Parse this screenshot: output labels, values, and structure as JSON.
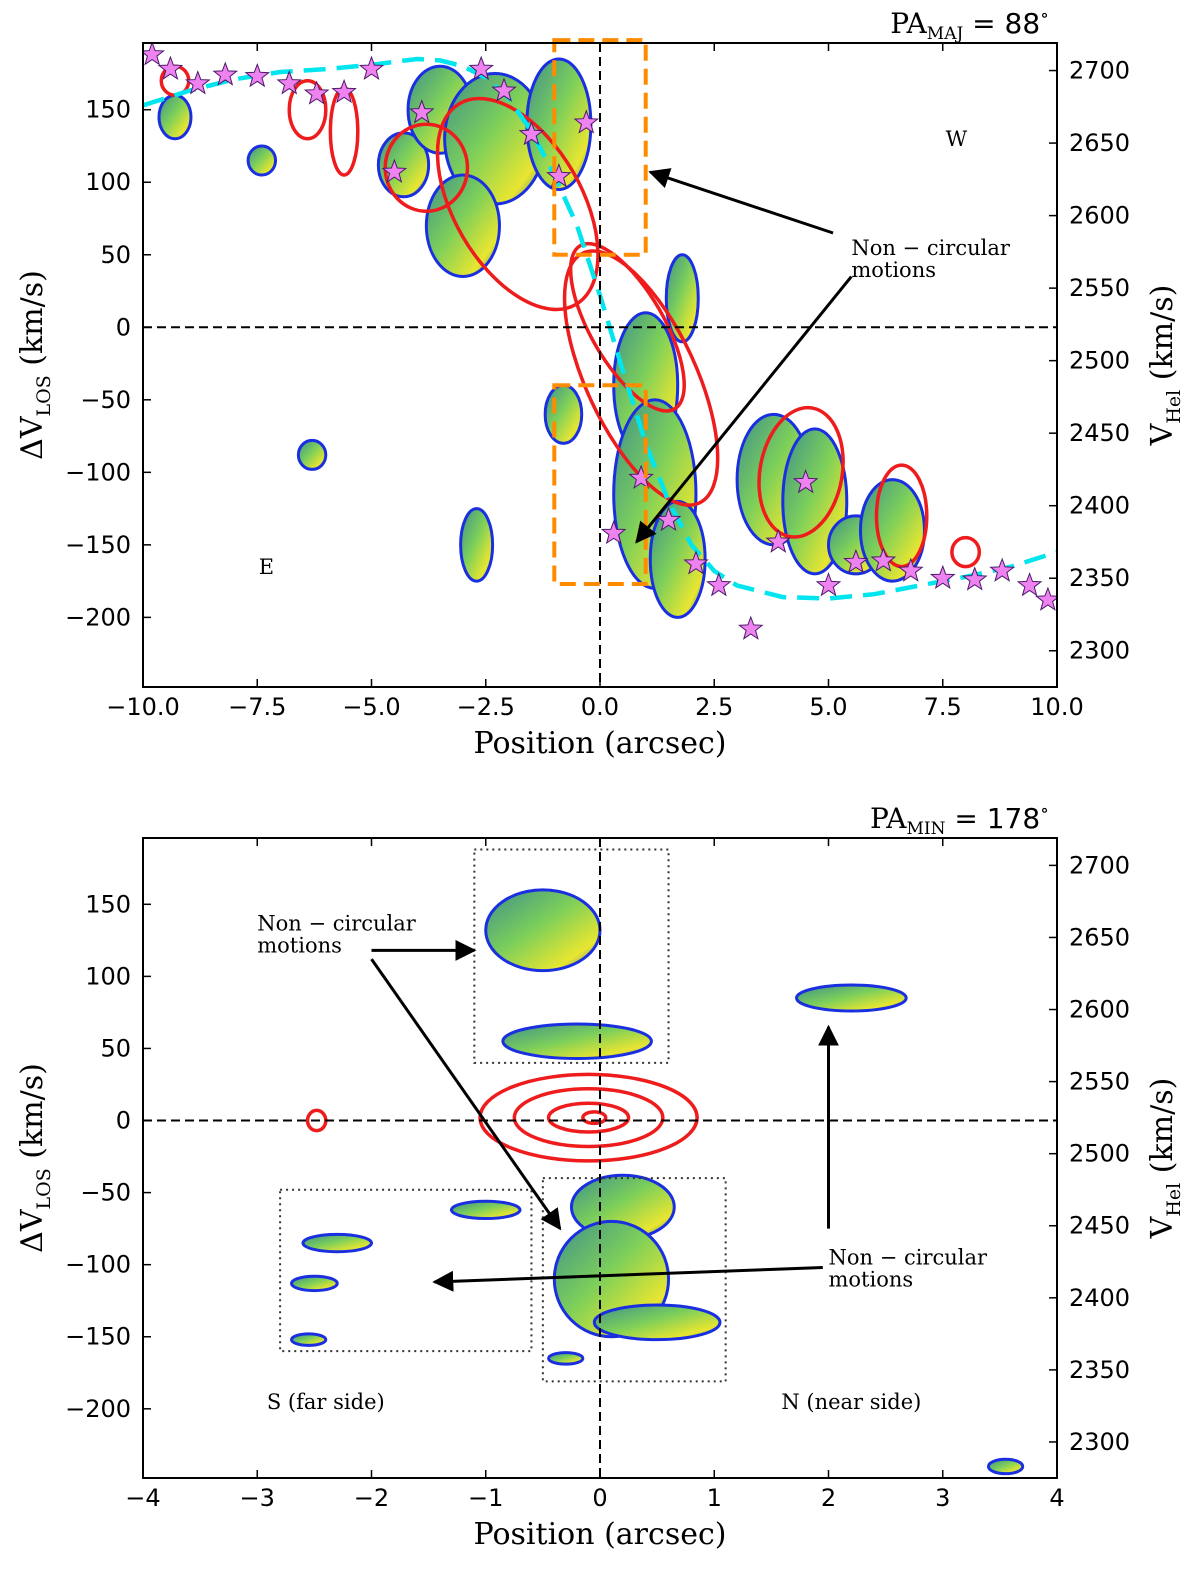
{
  "chart_data": [
    {
      "type": "contour",
      "title_main": "PA",
      "title_sub": "MAJ",
      "title_value": " = 88",
      "title_unit": "∘",
      "xlabel": "Position (arcsec)",
      "ylabel_main": "ΔV",
      "ylabel_sub": "LOS",
      "ylabel_unit": " (km/s)",
      "y2label_main": "V",
      "y2label_sub": "Hel",
      "y2label_unit": " (km/s)",
      "xlim": [
        -10,
        10
      ],
      "ylim": [
        -248,
        196
      ],
      "xticks": [
        -10,
        -7.5,
        -5,
        -2.5,
        0,
        2.5,
        5,
        7.5,
        10
      ],
      "xtick_labels": [
        "−10.0",
        "−7.5",
        "−5.0",
        "−2.5",
        "0.0",
        "2.5",
        "5.0",
        "7.5",
        "10.0"
      ],
      "yticks": [
        -200,
        -150,
        -100,
        -50,
        0,
        50,
        100,
        150
      ],
      "ytick_labels": [
        "−200",
        "−150",
        "−100",
        "−50",
        "0",
        "50",
        "100",
        "150"
      ],
      "y2_offset": 2523,
      "y2ticks": [
        2300,
        2350,
        2400,
        2450,
        2500,
        2550,
        2600,
        2650,
        2700
      ],
      "y2tick_labels": [
        "2300",
        "2350",
        "2400",
        "2450",
        "2500",
        "2550",
        "2600",
        "2650",
        "2700"
      ],
      "labels": [
        {
          "text": "W",
          "x": 7.8,
          "y": 125
        },
        {
          "text": "E",
          "x": -7.3,
          "y": -170
        }
      ],
      "annotation": {
        "line1": "Non − circular",
        "line2": "motions",
        "x": 5.5,
        "y": 50
      },
      "arrows": [
        {
          "from": [
            5.1,
            65
          ],
          "to": [
            1.1,
            107
          ]
        },
        {
          "from": [
            5.5,
            35
          ],
          "to": [
            0.8,
            -148
          ]
        }
      ],
      "boxes": [
        {
          "x0": -1.0,
          "x1": 1.0,
          "y0": 50,
          "y1": 198
        },
        {
          "x0": -1.0,
          "x1": 1.0,
          "y0": -177,
          "y1": -40
        }
      ],
      "box_color": "#ff8c00",
      "model_curve_color": "#00e5ee",
      "model_curve": [
        [
          -10,
          153
        ],
        [
          -9,
          163
        ],
        [
          -8,
          171
        ],
        [
          -7,
          176
        ],
        [
          -6,
          178
        ],
        [
          -5,
          181
        ],
        [
          -4,
          185
        ],
        [
          -3.5,
          184
        ],
        [
          -3,
          180
        ],
        [
          -2.5,
          172
        ],
        [
          -2,
          158
        ],
        [
          -1.5,
          135
        ],
        [
          -1,
          105
        ],
        [
          -0.5,
          70
        ],
        [
          0,
          22
        ],
        [
          0.5,
          -30
        ],
        [
          1,
          -80
        ],
        [
          1.5,
          -120
        ],
        [
          2,
          -150
        ],
        [
          2.5,
          -168
        ],
        [
          3,
          -178
        ],
        [
          4,
          -186
        ],
        [
          5,
          -187
        ],
        [
          6,
          -184
        ],
        [
          7,
          -178
        ],
        [
          8,
          -172
        ],
        [
          9,
          -165
        ],
        [
          10,
          -155
        ]
      ],
      "stars": [
        [
          -9.8,
          188
        ],
        [
          -9.4,
          178
        ],
        [
          -8.8,
          168
        ],
        [
          -8.2,
          174
        ],
        [
          -7.5,
          173
        ],
        [
          -6.8,
          168
        ],
        [
          -6.2,
          161
        ],
        [
          -5.6,
          162
        ],
        [
          -5.0,
          178
        ],
        [
          -4.5,
          107
        ],
        [
          -3.9,
          148
        ],
        [
          -2.6,
          178
        ],
        [
          -2.1,
          163
        ],
        [
          -1.5,
          133
        ],
        [
          -0.9,
          104
        ],
        [
          -0.3,
          141
        ],
        [
          0.3,
          -142
        ],
        [
          0.9,
          -104
        ],
        [
          1.5,
          -133
        ],
        [
          2.1,
          -163
        ],
        [
          2.6,
          -178
        ],
        [
          3.3,
          -208
        ],
        [
          3.9,
          -148
        ],
        [
          4.5,
          -107
        ],
        [
          5.0,
          -178
        ],
        [
          5.6,
          -162
        ],
        [
          6.2,
          -161
        ],
        [
          6.8,
          -168
        ],
        [
          7.5,
          -173
        ],
        [
          8.2,
          -174
        ],
        [
          8.8,
          -168
        ],
        [
          9.4,
          -178
        ],
        [
          9.8,
          -188
        ]
      ],
      "star_color": "#ee82ee",
      "blue_blobs": [
        {
          "x": -9.3,
          "y": 145,
          "rx": 0.35,
          "ry": 15
        },
        {
          "x": -7.4,
          "y": 115,
          "rx": 0.3,
          "ry": 10
        },
        {
          "x": -4.3,
          "y": 112,
          "rx": 0.55,
          "ry": 22
        },
        {
          "x": -3.5,
          "y": 150,
          "rx": 0.7,
          "ry": 30
        },
        {
          "x": -2.3,
          "y": 130,
          "rx": 1.1,
          "ry": 45
        },
        {
          "x": -3.0,
          "y": 70,
          "rx": 0.8,
          "ry": 35
        },
        {
          "x": -0.9,
          "y": 140,
          "rx": 0.7,
          "ry": 45
        },
        {
          "x": 1.0,
          "y": -40,
          "rx": 0.7,
          "ry": 50
        },
        {
          "x": 1.2,
          "y": -115,
          "rx": 0.9,
          "ry": 65
        },
        {
          "x": 1.7,
          "y": -160,
          "rx": 0.6,
          "ry": 40
        },
        {
          "x": 3.8,
          "y": -105,
          "rx": 0.8,
          "ry": 45
        },
        {
          "x": 4.7,
          "y": -120,
          "rx": 0.7,
          "ry": 50
        },
        {
          "x": 5.6,
          "y": -150,
          "rx": 0.6,
          "ry": 20
        },
        {
          "x": 6.4,
          "y": -140,
          "rx": 0.7,
          "ry": 35
        },
        {
          "x": -0.8,
          "y": -60,
          "rx": 0.4,
          "ry": 20
        },
        {
          "x": -2.7,
          "y": -150,
          "rx": 0.35,
          "ry": 25
        },
        {
          "x": -6.3,
          "y": -88,
          "rx": 0.3,
          "ry": 10
        },
        {
          "x": 1.8,
          "y": 20,
          "rx": 0.35,
          "ry": 30
        }
      ],
      "red_contours": [
        {
          "x": 0.9,
          "y": -35,
          "rx": 1.2,
          "ry": 95,
          "rot": -25
        },
        {
          "x": 0.6,
          "y": 0,
          "rx": 0.8,
          "ry": 65,
          "rot": -30
        },
        {
          "x": -1.8,
          "y": 85,
          "rx": 1.4,
          "ry": 80,
          "rot": -30
        },
        {
          "x": -3.8,
          "y": 110,
          "rx": 0.9,
          "ry": 30,
          "rot": 0
        },
        {
          "x": -5.6,
          "y": 135,
          "rx": 0.3,
          "ry": 30,
          "rot": 0
        },
        {
          "x": -9.3,
          "y": 170,
          "rx": 0.3,
          "ry": 10,
          "rot": 0
        },
        {
          "x": -6.4,
          "y": 150,
          "rx": 0.4,
          "ry": 20,
          "rot": 0
        },
        {
          "x": 4.4,
          "y": -100,
          "rx": 0.9,
          "ry": 45,
          "rot": 10
        },
        {
          "x": 6.6,
          "y": -130,
          "rx": 0.55,
          "ry": 35,
          "rot": 0
        },
        {
          "x": 8.0,
          "y": -155,
          "rx": 0.3,
          "ry": 10,
          "rot": 0
        }
      ]
    },
    {
      "type": "contour",
      "title_main": "PA",
      "title_sub": "MIN",
      "title_value": " = 178",
      "title_unit": "∘",
      "xlabel": "Position (arcsec)",
      "ylabel_main": "ΔV",
      "ylabel_sub": "LOS",
      "ylabel_unit": " (km/s)",
      "y2label_main": "V",
      "y2label_sub": "Hel",
      "y2label_unit": " (km/s)",
      "xlim": [
        -4,
        4
      ],
      "ylim": [
        -248,
        196
      ],
      "xticks": [
        -4,
        -3,
        -2,
        -1,
        0,
        1,
        2,
        3,
        4
      ],
      "xtick_labels": [
        "−4",
        "−3",
        "−2",
        "−1",
        "0",
        "1",
        "2",
        "3",
        "4"
      ],
      "yticks": [
        -200,
        -150,
        -100,
        -50,
        0,
        50,
        100,
        150
      ],
      "ytick_labels": [
        "−200",
        "−150",
        "−100",
        "−50",
        "0",
        "50",
        "100",
        "150"
      ],
      "y2_offset": 2523,
      "y2ticks": [
        2300,
        2350,
        2400,
        2450,
        2500,
        2550,
        2600,
        2650,
        2700
      ],
      "y2tick_labels": [
        "2300",
        "2350",
        "2400",
        "2450",
        "2500",
        "2550",
        "2600",
        "2650",
        "2700"
      ],
      "labels": [
        {
          "text": "S (far side)",
          "x": -2.4,
          "y": -200
        },
        {
          "text": "N (near side)",
          "x": 2.2,
          "y": -200
        }
      ],
      "annotations": [
        {
          "line1": "Non − circular",
          "line2": "motions",
          "x": -3.0,
          "y": 132
        },
        {
          "line1": "Non − circular",
          "line2": "motions",
          "x": 2.0,
          "y": -100
        }
      ],
      "arrows": [
        {
          "from": [
            -2.0,
            118
          ],
          "to": [
            -1.1,
            118
          ]
        },
        {
          "from": [
            -2.0,
            112
          ],
          "to": [
            -0.35,
            -75
          ]
        },
        {
          "from": [
            2.0,
            -75
          ],
          "to": [
            2.0,
            65
          ]
        },
        {
          "from": [
            1.95,
            -102
          ],
          "to": [
            -1.45,
            -112
          ]
        }
      ],
      "boxes": [
        {
          "x0": -1.1,
          "x1": 0.6,
          "y0": 40,
          "y1": 188
        },
        {
          "x0": -0.5,
          "x1": 1.1,
          "y0": -181,
          "y1": -40
        },
        {
          "x0": -2.8,
          "x1": -0.6,
          "y0": -160,
          "y1": -48
        }
      ],
      "box_color": "#333333",
      "blue_blobs": [
        {
          "x": -0.5,
          "y": 132,
          "rx": 0.5,
          "ry": 28
        },
        {
          "x": -0.2,
          "y": 55,
          "rx": 0.65,
          "ry": 12
        },
        {
          "x": 2.2,
          "y": 85,
          "rx": 0.48,
          "ry": 9
        },
        {
          "x": -1.0,
          "y": -62,
          "rx": 0.3,
          "ry": 6
        },
        {
          "x": -2.3,
          "y": -85,
          "rx": 0.3,
          "ry": 6
        },
        {
          "x": -2.5,
          "y": -113,
          "rx": 0.2,
          "ry": 5
        },
        {
          "x": -2.55,
          "y": -152,
          "rx": 0.15,
          "ry": 4
        },
        {
          "x": 0.2,
          "y": -60,
          "rx": 0.45,
          "ry": 22
        },
        {
          "x": 0.1,
          "y": -110,
          "rx": 0.5,
          "ry": 40
        },
        {
          "x": 0.5,
          "y": -140,
          "rx": 0.55,
          "ry": 12
        },
        {
          "x": -0.3,
          "y": -165,
          "rx": 0.15,
          "ry": 4
        },
        {
          "x": 3.55,
          "y": -240,
          "rx": 0.15,
          "ry": 5
        }
      ],
      "red_contours": [
        {
          "x": -0.1,
          "y": 2,
          "rx": 0.95,
          "ry": 30,
          "rot": 0
        },
        {
          "x": -0.1,
          "y": 2,
          "rx": 0.65,
          "ry": 20,
          "rot": 0
        },
        {
          "x": -0.1,
          "y": 2,
          "rx": 0.35,
          "ry": 10,
          "rot": 0
        },
        {
          "x": -0.05,
          "y": 2,
          "rx": 0.1,
          "ry": 4,
          "rot": 0
        },
        {
          "x": -2.48,
          "y": 0,
          "rx": 0.08,
          "ry": 7,
          "rot": 0
        }
      ]
    }
  ]
}
